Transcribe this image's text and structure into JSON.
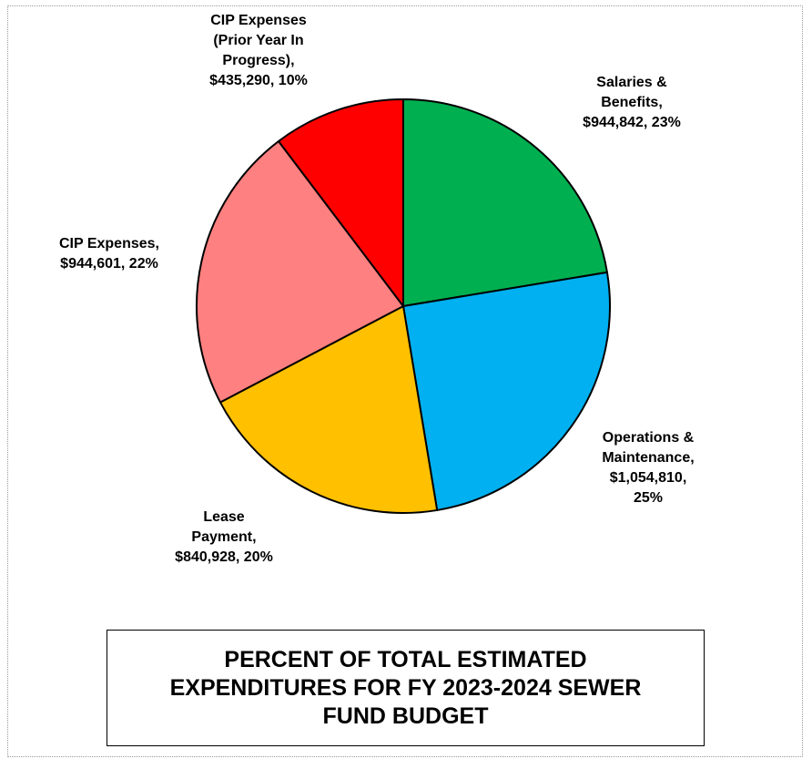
{
  "chart_data": {
    "type": "pie",
    "title": "PERCENT OF TOTAL ESTIMATED EXPENDITURES FOR FY 2023-2024 SEWER FUND BUDGET",
    "start_angle_deg": 0,
    "direction": "clockwise",
    "slices": [
      {
        "name": "Salaries & Benefits",
        "value": 944842,
        "percent": 23,
        "color": "#00b050",
        "label_lines": [
          "Salaries &",
          "Benefits,",
          "$944,842, 23%"
        ]
      },
      {
        "name": "Operations & Maintenance",
        "value": 1054810,
        "percent": 25,
        "color": "#00b0f0",
        "label_lines": [
          "Operations &",
          "Maintenance,",
          "$1,054,810,",
          "25%"
        ]
      },
      {
        "name": "Lease Payment",
        "value": 840928,
        "percent": 20,
        "color": "#ffc000",
        "label_lines": [
          "Lease",
          "Payment,",
          "$840,928, 20%"
        ]
      },
      {
        "name": "CIP Expenses",
        "value": 944601,
        "percent": 22,
        "color": "#ff8080",
        "label_lines": [
          "CIP Expenses,",
          "$944,601, 22%"
        ]
      },
      {
        "name": "CIP Expenses (Prior Year In Progress)",
        "value": 435290,
        "percent": 10,
        "color": "#ff0000",
        "label_lines": [
          "CIP Expenses",
          "(Prior Year In",
          "Progress),",
          "$435,290, 10%"
        ]
      }
    ]
  },
  "title_box": {
    "text": "PERCENT OF TOTAL ESTIMATED\nEXPENDITURES FOR FY 2023-2024 SEWER\nFUND BUDGET"
  }
}
